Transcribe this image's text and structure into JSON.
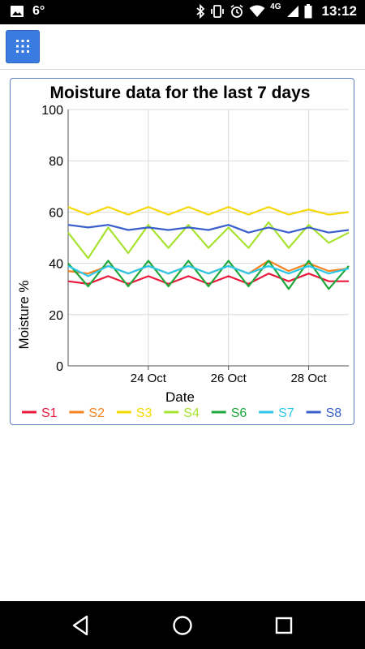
{
  "status_bar": {
    "temperature": "6°",
    "network": "4G",
    "time": "13:12",
    "left_icons": [
      "image-icon"
    ],
    "right_icons": [
      "bluetooth-icon",
      "vibrate-icon",
      "alarm-icon",
      "wifi-icon",
      "signal-icon",
      "battery-icon"
    ]
  },
  "app_bar": {
    "menu_icon": "apps-grid-icon",
    "accent_color": "#3a7be0"
  },
  "navigation_bar": {
    "icons": [
      "back-icon",
      "home-icon",
      "recents-icon"
    ]
  },
  "chart_data": {
    "type": "line",
    "title": "Moisture data for the last 7 days",
    "xlabel": "Date",
    "ylabel": "Moisture %",
    "ylim": [
      0,
      100
    ],
    "yticks": [
      0,
      20,
      40,
      60,
      80,
      100
    ],
    "xlim": [
      "22 Oct 16:00",
      "29 Oct 13:00"
    ],
    "xticks": [
      {
        "label": "24 Oct",
        "value": 2.0
      },
      {
        "label": "26 Oct",
        "value": 4.0
      },
      {
        "label": "28 Oct",
        "value": 6.0
      }
    ],
    "grid": true,
    "legend_position": "bottom",
    "x_days": [
      0,
      0.5,
      1,
      1.5,
      2,
      2.5,
      3,
      3.5,
      4,
      4.5,
      5,
      5.5,
      6,
      6.5,
      7
    ],
    "series": [
      {
        "name": "S1",
        "color": "#e8193c",
        "values": [
          33,
          32,
          35,
          32,
          35,
          32,
          35,
          32,
          35,
          32,
          36,
          33,
          36,
          33,
          33
        ]
      },
      {
        "name": "S2",
        "color": "#f58220",
        "values": [
          37,
          36,
          39,
          36,
          39,
          36,
          39,
          36,
          39,
          36,
          41,
          37,
          40,
          37,
          38
        ]
      },
      {
        "name": "S3",
        "color": "#f5d800",
        "values": [
          62,
          59,
          62,
          59,
          62,
          59,
          62,
          59,
          62,
          59,
          62,
          59,
          61,
          59,
          60
        ]
      },
      {
        "name": "S4",
        "color": "#a6e22e",
        "values": [
          52,
          42,
          54,
          44,
          55,
          46,
          55,
          46,
          54,
          46,
          56,
          46,
          55,
          48,
          52
        ]
      },
      {
        "name": "S6",
        "color": "#1fa83c",
        "values": [
          40,
          31,
          41,
          31,
          41,
          31,
          41,
          31,
          41,
          31,
          41,
          30,
          41,
          30,
          39
        ]
      },
      {
        "name": "S7",
        "color": "#2dc8e8",
        "values": [
          39,
          35,
          39,
          36,
          39,
          36,
          39,
          36,
          39,
          36,
          39,
          36,
          39,
          36,
          38
        ]
      },
      {
        "name": "S8",
        "color": "#3a5fcd",
        "values": [
          55,
          54,
          55,
          53,
          54,
          53,
          54,
          53,
          55,
          52,
          54,
          52,
          54,
          52,
          53
        ]
      }
    ]
  }
}
